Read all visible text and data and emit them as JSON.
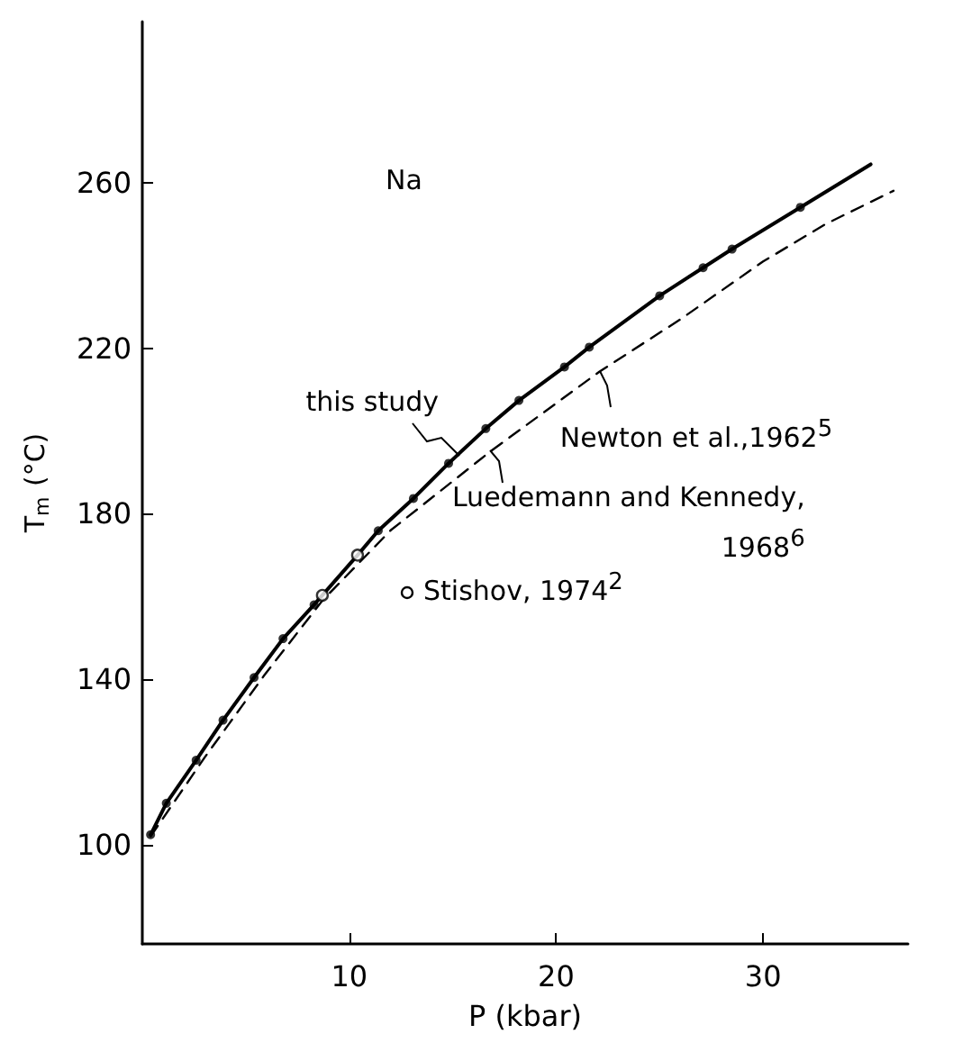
{
  "chart_data": {
    "type": "line",
    "xlabel": "P (kbar)",
    "ylabel": "T$_{m}$ (°C)",
    "xlim": [
      0,
      37
    ],
    "ylim": [
      76,
      299
    ],
    "xticks": [
      10,
      20,
      30
    ],
    "yticks": [
      100,
      140,
      180,
      220,
      260
    ],
    "grid": false,
    "legend": "right",
    "series": [
      {
        "color": "#000000",
        "line_style": "solid",
        "marker": "none",
        "x": [
          0.4,
          1.16,
          2.6,
          3.9,
          5.4,
          6.8,
          8.3,
          10.4,
          11.4,
          13.1,
          14.8,
          16.6,
          18.2,
          20.4,
          21.6,
          25.0,
          27.1,
          28.5,
          31.8,
          35.2
        ],
        "values": [
          102.4,
          110,
          120.4,
          130.1,
          140.4,
          149.8,
          158,
          170,
          175.9,
          183.7,
          192.2,
          200.6,
          207.4,
          215.5,
          220.3,
          232.7,
          239.5,
          244.0,
          254.1,
          264.5
        ]
      },
      {
        "color": "#000000",
        "line_style": "dashed",
        "marker": "none",
        "x": [
          0.4,
          3,
          5.9,
          8.7,
          12,
          16.8,
          22.1,
          26,
          30,
          33,
          36.3
        ],
        "values": [
          102,
          121,
          141,
          159,
          176,
          195,
          214.4,
          227,
          241,
          250,
          258.1
        ]
      },
      {
        "type": "scatter",
        "color": "#000000",
        "marker": "circle",
        "x": [
          0.4,
          1.16,
          2.6,
          3.9,
          5.4,
          6.8,
          8.3,
          11.4,
          13.1,
          14.8,
          16.6,
          18.2,
          20.4,
          21.6,
          25.0,
          27.1,
          28.5,
          31.8
        ],
        "values": [
          102.4,
          110,
          120.4,
          130.1,
          140.4,
          149.8,
          158,
          175.9,
          183.7,
          192.2,
          200.6,
          207.4,
          215.5,
          220.3,
          232.7,
          239.5,
          244.0,
          254.1
        ]
      },
      {
        "type": "scatter",
        "name": "Stishov, 1974$^{2}$",
        "color": "#000000",
        "marker": "circle",
        "x": [
          8.7,
          10.4
        ],
        "values": [
          160.3,
          170
        ]
      }
    ],
    "annotations": [
      "Na",
      {
        "text": "this study",
        "x": 15.3,
        "y": 194
      },
      {
        "text": "Newton et al.,1962$^{5}$",
        "x": 22.1,
        "y": 214.4
      },
      {
        "text": "Luedemann and Kennedy,\n1968$^{6}$",
        "x": 16.8,
        "y": 195.2
      }
    ]
  }
}
